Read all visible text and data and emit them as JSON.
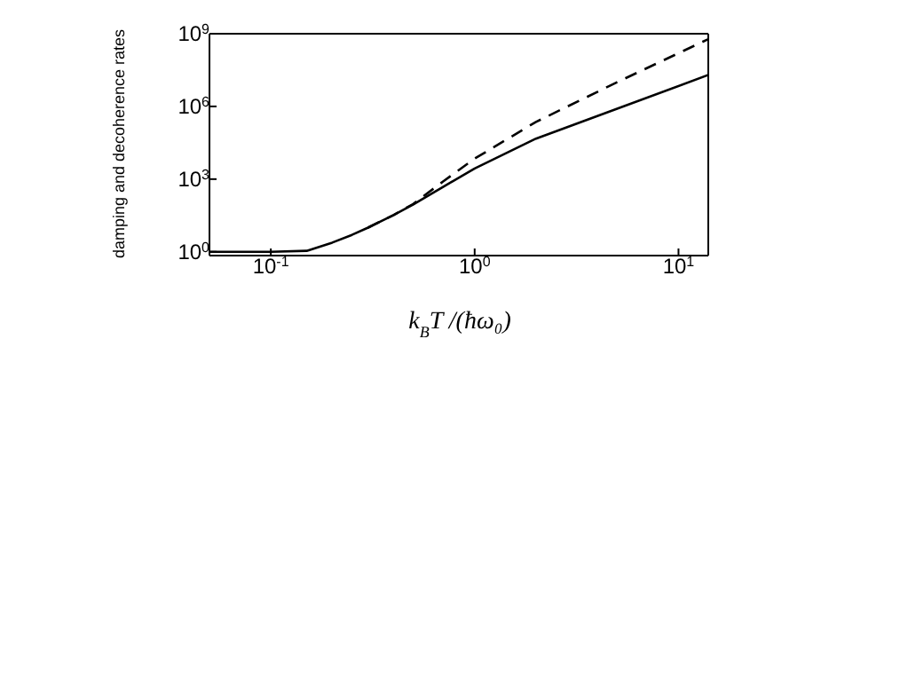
{
  "chart_data": {
    "type": "line",
    "xlabel": "k$_{B}$T /(ħω₀)",
    "ylabel": "damping and decoherence rates",
    "log": "xy",
    "marker": "none",
    "xlim": [
      0.05,
      14
    ],
    "xticks": [
      {
        "value": 0.1,
        "label": "10$^{-1}$"
      },
      {
        "value": 1,
        "label": "10$^{0}$"
      },
      {
        "value": 10,
        "label": "10$^{1}$"
      }
    ],
    "ylim": [
      0.7,
      1000000000
    ],
    "yticks": [
      {
        "value": 1,
        "label": "10$^{0}$"
      },
      {
        "value": 1000,
        "label": "10$^{3}$"
      },
      {
        "value": 1000000,
        "label": "10$^{6}$"
      },
      {
        "value": 1000000000,
        "label": "10$^{9}$"
      }
    ],
    "series": [
      {
        "color": "#000000",
        "line_style": "solid",
        "x": [
          0.05,
          0.1,
          0.15,
          0.2,
          0.25,
          0.3,
          0.4,
          0.5,
          0.7,
          1,
          2,
          5,
          14
        ],
        "values": [
          1,
          1,
          1.1,
          2.4,
          5,
          10,
          33,
          90,
          480,
          2750,
          47000,
          800000,
          20000000
        ]
      },
      {
        "color": "#000000",
        "line_style": "dashed",
        "x": [
          0.3,
          0.4,
          0.5,
          0.7,
          1,
          2,
          5,
          14
        ],
        "values": [
          10,
          33,
          95,
          800,
          7000,
          230000,
          10000000,
          600000000
        ]
      }
    ]
  }
}
